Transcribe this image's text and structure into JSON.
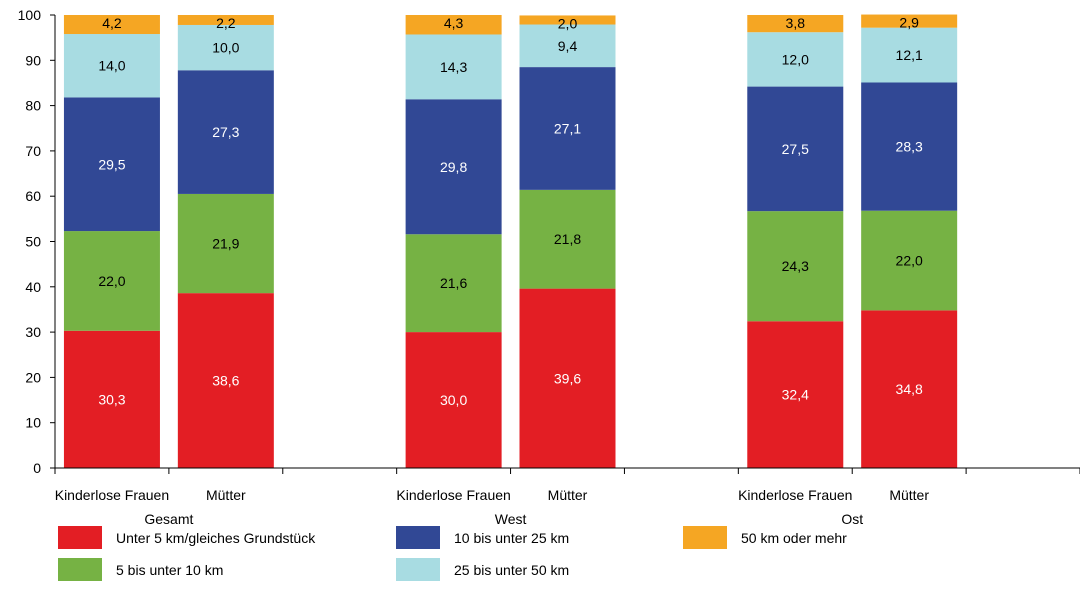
{
  "chart_data": {
    "type": "bar",
    "stacked": true,
    "ylim": [
      0,
      100
    ],
    "yticks": [
      "0",
      "10",
      "20",
      "30",
      "40",
      "50",
      "60",
      "70",
      "80",
      "90",
      "100"
    ],
    "groups": [
      {
        "label": "Gesamt",
        "bars": [
          {
            "label": "Kinderlose Frauen",
            "values": [
              30.3,
              22.0,
              29.5,
              14.0,
              4.2
            ],
            "labels": [
              "30,3",
              "22,0",
              "29,5",
              "14,0",
              "4,2"
            ]
          },
          {
            "label": "Mütter",
            "values": [
              38.6,
              21.9,
              27.3,
              10.0,
              2.2
            ],
            "labels": [
              "38,6",
              "21,9",
              "27,3",
              "10,0",
              "2,2"
            ]
          }
        ]
      },
      {
        "label": "West",
        "bars": [
          {
            "label": "Kinderlose Frauen",
            "values": [
              30.0,
              21.6,
              29.8,
              14.3,
              4.3
            ],
            "labels": [
              "30,0",
              "21,6",
              "29,8",
              "14,3",
              "4,3"
            ]
          },
          {
            "label": "Mütter",
            "values": [
              39.6,
              21.8,
              27.1,
              9.4,
              2.0
            ],
            "labels": [
              "39,6",
              "21,8",
              "27,1",
              "9,4",
              "2,0"
            ]
          }
        ]
      },
      {
        "label": "Ost",
        "bars": [
          {
            "label": "Kinderlose Frauen",
            "values": [
              32.4,
              24.3,
              27.5,
              12.0,
              3.8
            ],
            "labels": [
              "32,4",
              "24,3",
              "27,5",
              "12,0",
              "3,8"
            ]
          },
          {
            "label": "Mütter",
            "values": [
              34.8,
              22.0,
              28.3,
              12.1,
              2.9
            ],
            "labels": [
              "34,8",
              "22,0",
              "28,3",
              "12,1",
              "2,9"
            ]
          }
        ]
      }
    ],
    "series": [
      {
        "name": "Unter 5 km/gleiches Grundstück",
        "color": "#e31e24",
        "label_color": "#ffffff"
      },
      {
        "name": "5 bis unter 10 km",
        "color": "#76b244",
        "label_color": "#000000"
      },
      {
        "name": "10 bis unter 25 km",
        "color": "#314895",
        "label_color": "#ffffff"
      },
      {
        "name": "25 bis unter 50 km",
        "color": "#a8dce2",
        "label_color": "#000000"
      },
      {
        "name": "50 km oder mehr",
        "color": "#f5a623",
        "label_color": "#000000"
      }
    ],
    "legend_position": "bottom",
    "grid": false
  }
}
